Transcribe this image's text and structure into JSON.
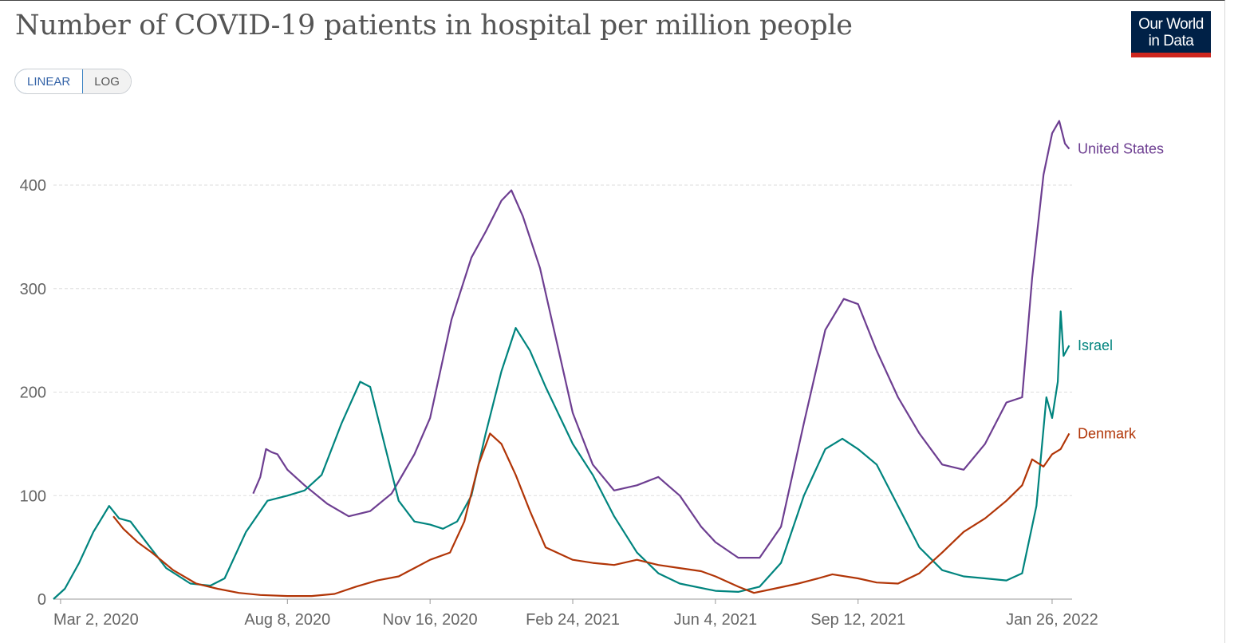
{
  "header": {
    "title": "Number of COVID-19 patients in hospital per million people",
    "logo_line1": "Our World",
    "logo_line2": "in Data"
  },
  "scale_toggle": {
    "linear_label": "LINEAR",
    "log_label": "LOG",
    "selected": "LINEAR"
  },
  "chart_data": {
    "type": "line",
    "title": "Number of COVID-19 patients in hospital per million people",
    "xlabel": "",
    "ylabel": "",
    "ylim": [
      0,
      480
    ],
    "y_ticks": [
      0,
      100,
      200,
      300,
      400
    ],
    "x_range": [
      "2020-02-26",
      "2022-02-09"
    ],
    "x_ticks": [
      {
        "date": "2020-03-02",
        "label": "Mar 2, 2020"
      },
      {
        "date": "2020-08-08",
        "label": "Aug 8, 2020"
      },
      {
        "date": "2020-11-16",
        "label": "Nov 16, 2020"
      },
      {
        "date": "2021-02-24",
        "label": "Feb 24, 2021"
      },
      {
        "date": "2021-06-04",
        "label": "Jun 4, 2021"
      },
      {
        "date": "2021-09-12",
        "label": "Sep 12, 2021"
      },
      {
        "date": "2022-01-26",
        "label": "Jan 26, 2022"
      }
    ],
    "grid": true,
    "legend": "line-end labels",
    "series": [
      {
        "name": "United States",
        "color": "#6d3e91",
        "points": [
          [
            "2020-07-15",
            102
          ],
          [
            "2020-07-20",
            118
          ],
          [
            "2020-07-24",
            145
          ],
          [
            "2020-07-28",
            142
          ],
          [
            "2020-08-01",
            140
          ],
          [
            "2020-08-08",
            125
          ],
          [
            "2020-08-20",
            110
          ],
          [
            "2020-09-05",
            92
          ],
          [
            "2020-09-20",
            80
          ],
          [
            "2020-10-05",
            85
          ],
          [
            "2020-10-20",
            102
          ],
          [
            "2020-11-05",
            140
          ],
          [
            "2020-11-16",
            175
          ],
          [
            "2020-12-01",
            270
          ],
          [
            "2020-12-15",
            330
          ],
          [
            "2020-12-25",
            355
          ],
          [
            "2021-01-05",
            385
          ],
          [
            "2021-01-12",
            395
          ],
          [
            "2021-01-20",
            370
          ],
          [
            "2021-02-01",
            320
          ],
          [
            "2021-02-15",
            235
          ],
          [
            "2021-02-24",
            180
          ],
          [
            "2021-03-10",
            130
          ],
          [
            "2021-03-25",
            105
          ],
          [
            "2021-04-10",
            110
          ],
          [
            "2021-04-25",
            118
          ],
          [
            "2021-05-10",
            100
          ],
          [
            "2021-05-25",
            70
          ],
          [
            "2021-06-04",
            55
          ],
          [
            "2021-06-20",
            40
          ],
          [
            "2021-07-05",
            40
          ],
          [
            "2021-07-20",
            70
          ],
          [
            "2021-08-05",
            170
          ],
          [
            "2021-08-20",
            260
          ],
          [
            "2021-09-02",
            290
          ],
          [
            "2021-09-12",
            285
          ],
          [
            "2021-09-25",
            240
          ],
          [
            "2021-10-10",
            195
          ],
          [
            "2021-10-25",
            160
          ],
          [
            "2021-11-10",
            130
          ],
          [
            "2021-11-25",
            125
          ],
          [
            "2021-12-10",
            150
          ],
          [
            "2021-12-25",
            190
          ],
          [
            "2022-01-05",
            195
          ],
          [
            "2022-01-12",
            310
          ],
          [
            "2022-01-20",
            410
          ],
          [
            "2022-01-26",
            450
          ],
          [
            "2022-01-31",
            462
          ],
          [
            "2022-02-04",
            440
          ],
          [
            "2022-02-07",
            435
          ]
        ]
      },
      {
        "name": "Israel",
        "color": "#00847e",
        "points": [
          [
            "2020-02-26",
            0
          ],
          [
            "2020-03-05",
            10
          ],
          [
            "2020-03-15",
            35
          ],
          [
            "2020-03-25",
            65
          ],
          [
            "2020-04-05",
            90
          ],
          [
            "2020-04-12",
            78
          ],
          [
            "2020-04-20",
            75
          ],
          [
            "2020-05-01",
            55
          ],
          [
            "2020-05-15",
            30
          ],
          [
            "2020-06-01",
            15
          ],
          [
            "2020-06-15",
            13
          ],
          [
            "2020-06-25",
            20
          ],
          [
            "2020-07-10",
            65
          ],
          [
            "2020-07-25",
            95
          ],
          [
            "2020-08-08",
            100
          ],
          [
            "2020-08-20",
            105
          ],
          [
            "2020-09-01",
            120
          ],
          [
            "2020-09-15",
            170
          ],
          [
            "2020-09-28",
            210
          ],
          [
            "2020-10-05",
            205
          ],
          [
            "2020-10-15",
            150
          ],
          [
            "2020-10-25",
            95
          ],
          [
            "2020-11-05",
            75
          ],
          [
            "2020-11-16",
            72
          ],
          [
            "2020-11-25",
            68
          ],
          [
            "2020-12-05",
            75
          ],
          [
            "2020-12-15",
            100
          ],
          [
            "2020-12-25",
            160
          ],
          [
            "2021-01-05",
            220
          ],
          [
            "2021-01-15",
            262
          ],
          [
            "2021-01-25",
            240
          ],
          [
            "2021-02-05",
            205
          ],
          [
            "2021-02-24",
            150
          ],
          [
            "2021-03-10",
            120
          ],
          [
            "2021-03-25",
            80
          ],
          [
            "2021-04-10",
            45
          ],
          [
            "2021-04-25",
            25
          ],
          [
            "2021-05-10",
            15
          ],
          [
            "2021-06-04",
            8
          ],
          [
            "2021-06-20",
            7
          ],
          [
            "2021-07-05",
            12
          ],
          [
            "2021-07-20",
            35
          ],
          [
            "2021-08-05",
            100
          ],
          [
            "2021-08-20",
            145
          ],
          [
            "2021-09-01",
            155
          ],
          [
            "2021-09-12",
            145
          ],
          [
            "2021-09-25",
            130
          ],
          [
            "2021-10-10",
            90
          ],
          [
            "2021-10-25",
            50
          ],
          [
            "2021-11-10",
            28
          ],
          [
            "2021-11-25",
            22
          ],
          [
            "2021-12-10",
            20
          ],
          [
            "2021-12-25",
            18
          ],
          [
            "2022-01-05",
            25
          ],
          [
            "2022-01-15",
            90
          ],
          [
            "2022-01-22",
            195
          ],
          [
            "2022-01-26",
            175
          ],
          [
            "2022-01-30",
            210
          ],
          [
            "2022-02-01",
            278
          ],
          [
            "2022-02-03",
            235
          ],
          [
            "2022-02-07",
            245
          ]
        ]
      },
      {
        "name": "Denmark",
        "color": "#b13507",
        "points": [
          [
            "2020-04-08",
            80
          ],
          [
            "2020-04-15",
            68
          ],
          [
            "2020-04-25",
            55
          ],
          [
            "2020-05-05",
            45
          ],
          [
            "2020-05-20",
            28
          ],
          [
            "2020-06-05",
            15
          ],
          [
            "2020-06-20",
            10
          ],
          [
            "2020-07-05",
            6
          ],
          [
            "2020-07-20",
            4
          ],
          [
            "2020-08-08",
            3
          ],
          [
            "2020-08-25",
            3
          ],
          [
            "2020-09-10",
            5
          ],
          [
            "2020-09-25",
            12
          ],
          [
            "2020-10-10",
            18
          ],
          [
            "2020-10-25",
            22
          ],
          [
            "2020-11-05",
            30
          ],
          [
            "2020-11-16",
            38
          ],
          [
            "2020-11-30",
            45
          ],
          [
            "2020-12-10",
            75
          ],
          [
            "2020-12-20",
            130
          ],
          [
            "2020-12-28",
            160
          ],
          [
            "2021-01-05",
            150
          ],
          [
            "2021-01-15",
            120
          ],
          [
            "2021-01-25",
            85
          ],
          [
            "2021-02-05",
            50
          ],
          [
            "2021-02-24",
            38
          ],
          [
            "2021-03-10",
            35
          ],
          [
            "2021-03-25",
            33
          ],
          [
            "2021-04-10",
            38
          ],
          [
            "2021-04-25",
            33
          ],
          [
            "2021-05-10",
            30
          ],
          [
            "2021-05-25",
            27
          ],
          [
            "2021-06-04",
            22
          ],
          [
            "2021-06-20",
            12
          ],
          [
            "2021-07-01",
            6
          ],
          [
            "2021-07-15",
            10
          ],
          [
            "2021-08-01",
            15
          ],
          [
            "2021-08-15",
            20
          ],
          [
            "2021-08-25",
            24
          ],
          [
            "2021-09-12",
            20
          ],
          [
            "2021-09-25",
            16
          ],
          [
            "2021-10-10",
            15
          ],
          [
            "2021-10-25",
            25
          ],
          [
            "2021-11-10",
            45
          ],
          [
            "2021-11-25",
            65
          ],
          [
            "2021-12-10",
            78
          ],
          [
            "2021-12-25",
            95
          ],
          [
            "2022-01-05",
            110
          ],
          [
            "2022-01-12",
            135
          ],
          [
            "2022-01-20",
            128
          ],
          [
            "2022-01-26",
            140
          ],
          [
            "2022-02-01",
            145
          ],
          [
            "2022-02-07",
            160
          ]
        ]
      }
    ]
  }
}
